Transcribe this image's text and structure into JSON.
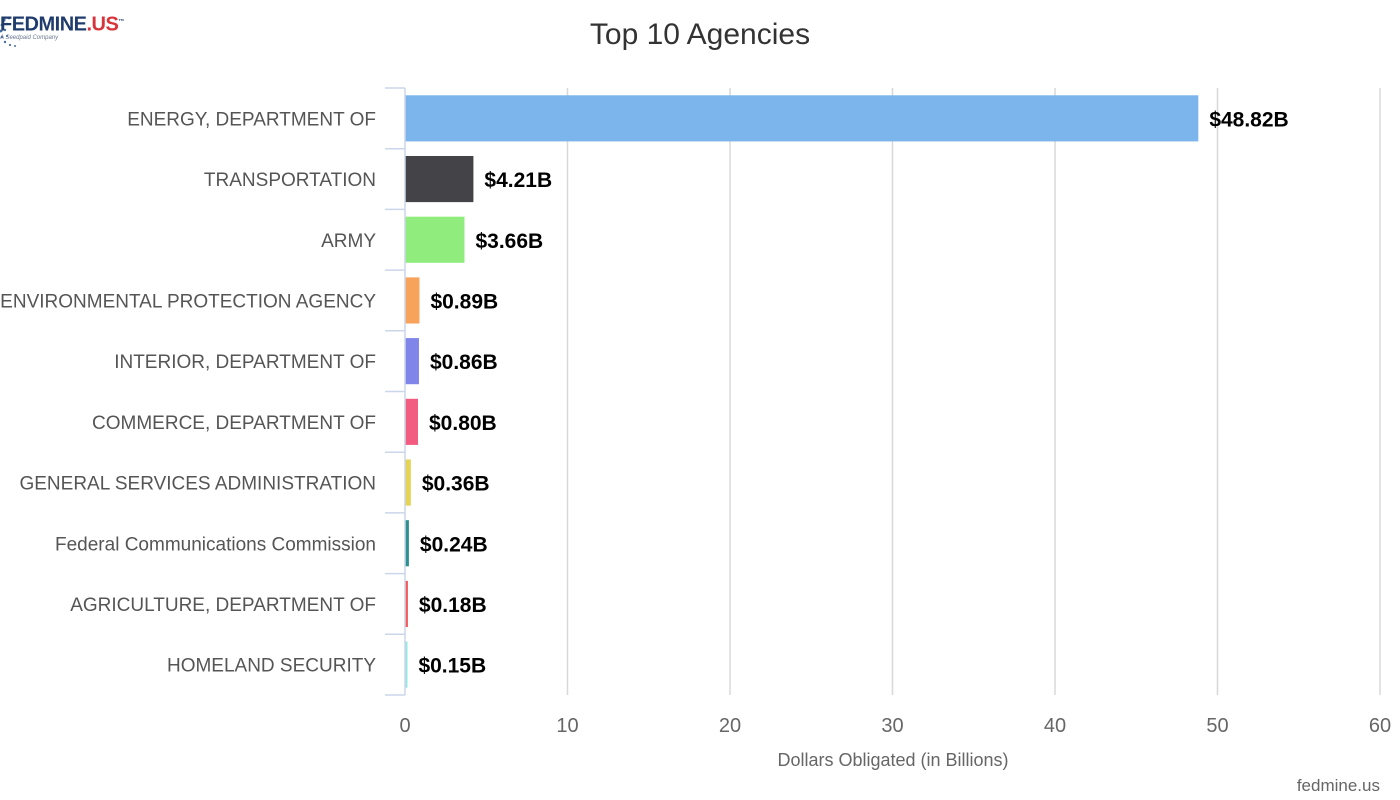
{
  "logo": {
    "main_text": "FEDMINE",
    "accent_text": ".US",
    "trademark": "™",
    "sub_text": "A Seedpaid Company"
  },
  "chart_data": {
    "type": "bar",
    "orientation": "horizontal",
    "title": "Top 10 Agencies",
    "xlabel": "Dollars Obligated (in Billions)",
    "ylabel": "",
    "xlim": [
      0,
      60
    ],
    "x_ticks": [
      0,
      10,
      20,
      30,
      40,
      50,
      60
    ],
    "grid": true,
    "categories": [
      "ENERGY, DEPARTMENT OF",
      "TRANSPORTATION",
      "ARMY",
      "ENVIRONMENTAL PROTECTION AGENCY",
      "INTERIOR, DEPARTMENT OF",
      "COMMERCE, DEPARTMENT OF",
      "GENERAL SERVICES ADMINISTRATION",
      "Federal Communications Commission",
      "AGRICULTURE, DEPARTMENT OF",
      "HOMELAND SECURITY"
    ],
    "values": [
      48.82,
      4.21,
      3.66,
      0.89,
      0.86,
      0.8,
      0.36,
      0.24,
      0.18,
      0.15
    ],
    "data_labels": [
      "$48.82B",
      "$4.21B",
      "$3.66B",
      "$0.89B",
      "$0.86B",
      "$0.80B",
      "$0.36B",
      "$0.24B",
      "$0.18B",
      "$0.15B"
    ],
    "colors": [
      "#7cb5ec",
      "#434348",
      "#90ed7d",
      "#f7a35c",
      "#8085e9",
      "#f15c80",
      "#e4d354",
      "#2b908f",
      "#f45b5b",
      "#91e8e1"
    ],
    "credit": "fedmine.us"
  }
}
